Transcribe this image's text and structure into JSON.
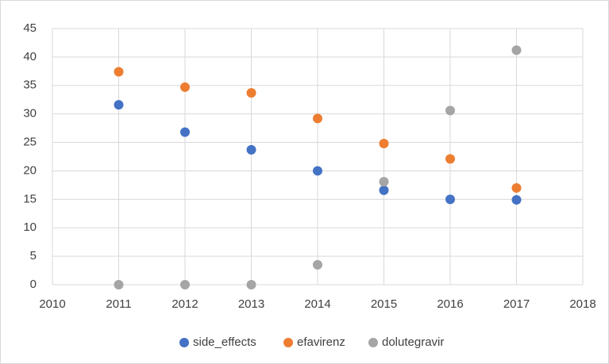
{
  "chart_data": {
    "type": "scatter",
    "x": [
      2011,
      2012,
      2013,
      2014,
      2015,
      2016,
      2017
    ],
    "series": [
      {
        "name": "side_effects",
        "color": "#4472c4",
        "values": [
          31.6,
          26.8,
          23.7,
          20,
          16.6,
          15,
          14.9
        ]
      },
      {
        "name": "efavirenz",
        "color": "#ed7d31",
        "values": [
          37.4,
          34.7,
          33.7,
          29.2,
          24.8,
          22.1,
          17
        ]
      },
      {
        "name": "dolutegravir",
        "color": "#a5a5a5",
        "values": [
          0,
          0,
          0,
          3.5,
          18.1,
          30.6,
          41.2
        ]
      }
    ],
    "xlim": [
      2010,
      2018
    ],
    "xticks": [
      2010,
      2011,
      2012,
      2013,
      2014,
      2015,
      2016,
      2017,
      2018
    ],
    "ylim": [
      0,
      45
    ],
    "yticks": [
      0,
      5,
      10,
      15,
      20,
      25,
      30,
      35,
      40,
      45
    ],
    "grid": true,
    "legend": "bottom"
  }
}
